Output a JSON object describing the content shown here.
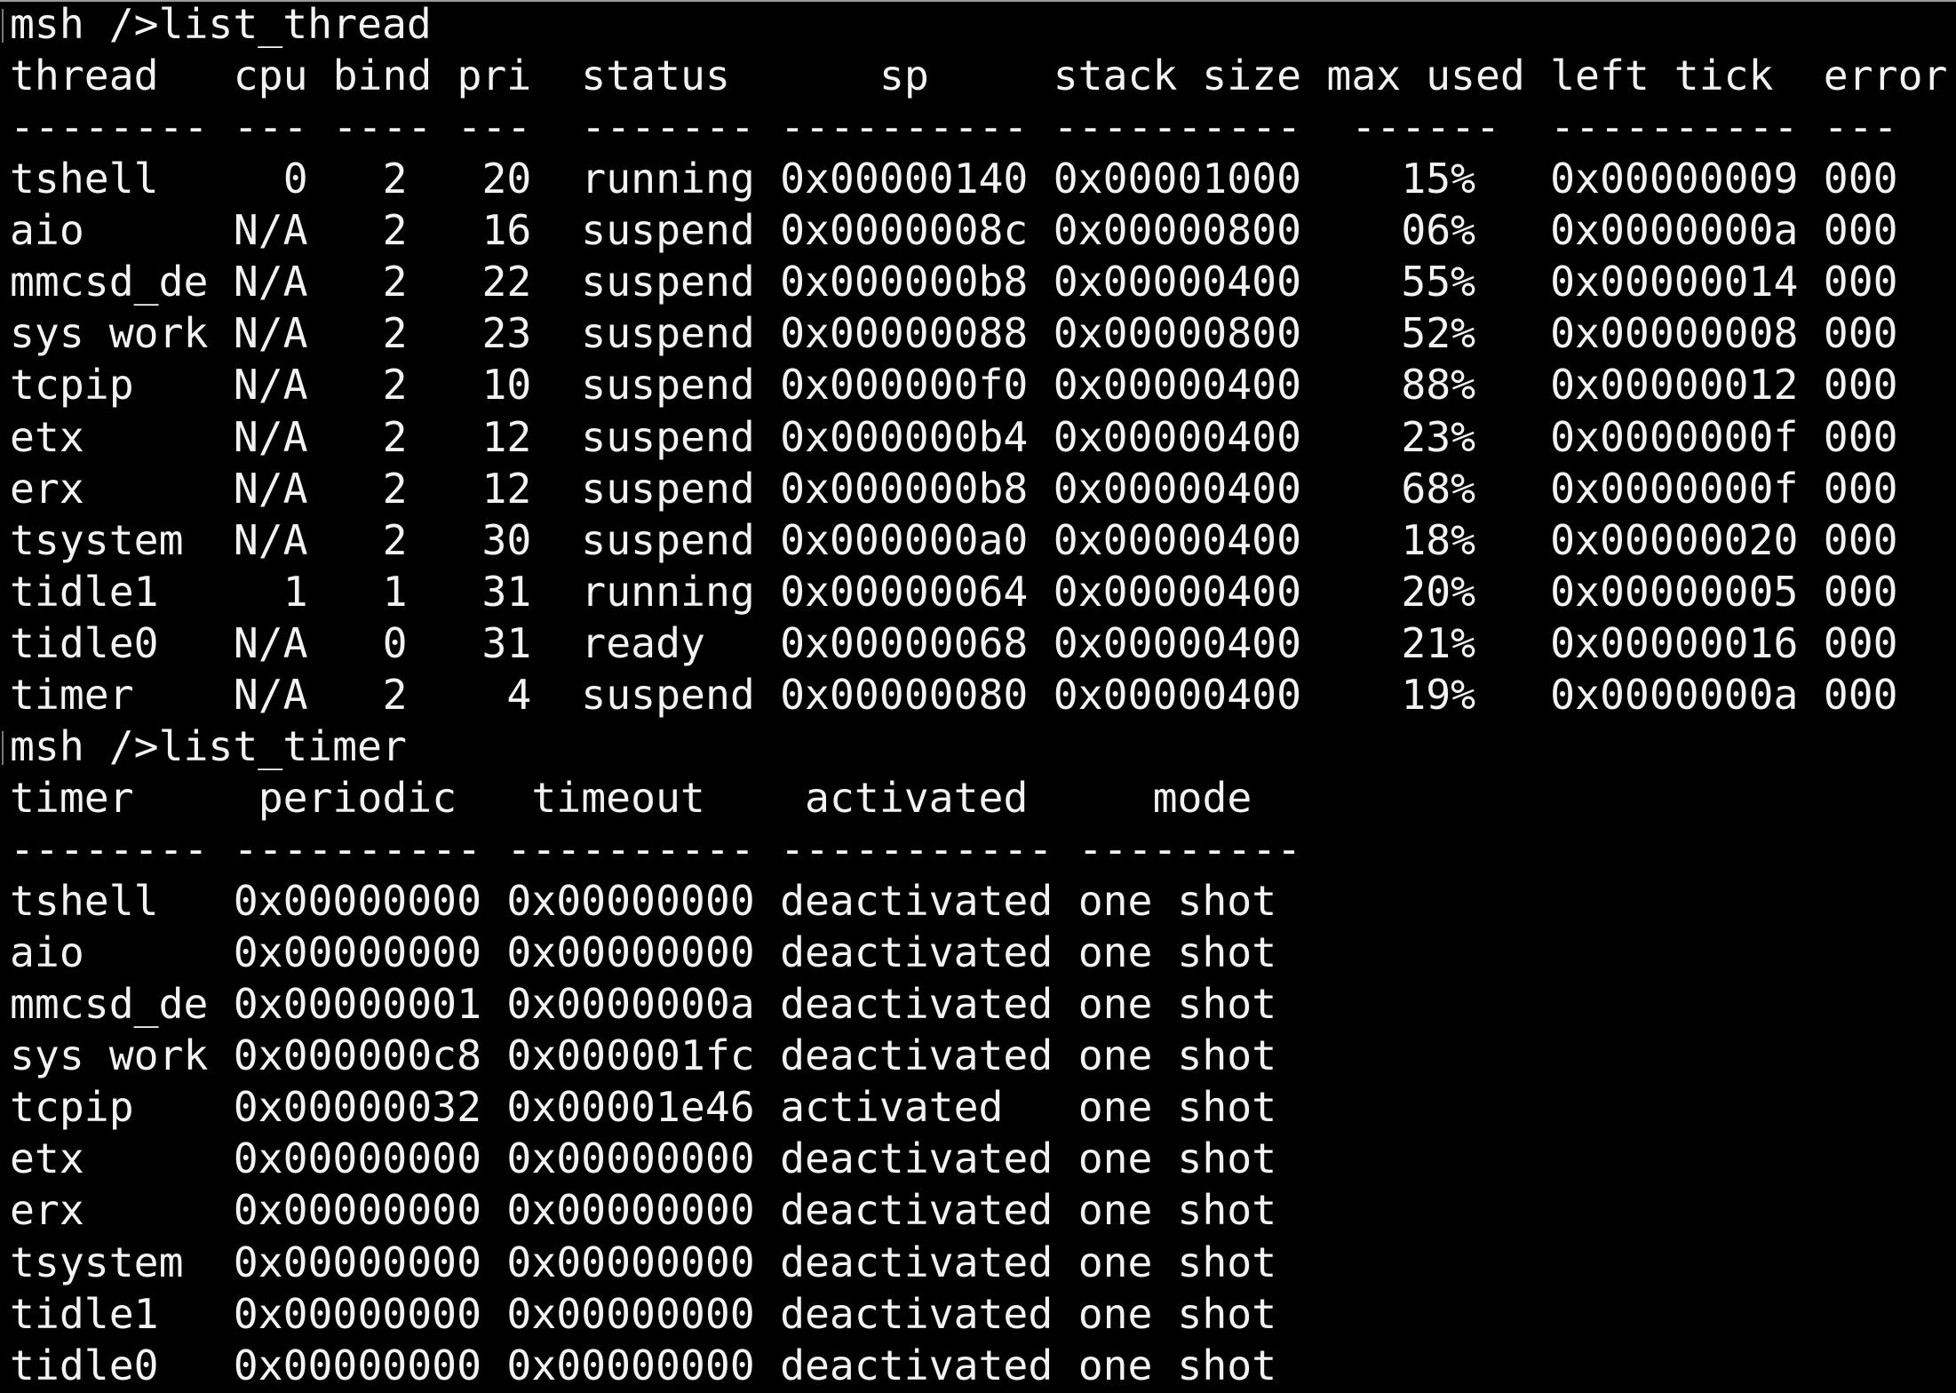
{
  "colors": {
    "background": "#000000",
    "text": "#f2f2f2"
  },
  "thread_command": "msh />list_thread",
  "thread_table": {
    "headers": [
      "thread",
      "cpu",
      "bind",
      "pri",
      "status",
      "sp",
      "stack size",
      "max used",
      "left tick",
      "error"
    ],
    "separators": [
      "--------",
      "---",
      "----",
      "---",
      "-------",
      "----------",
      "----------",
      "------",
      "----------",
      "---"
    ],
    "rows": [
      [
        "tshell",
        "0",
        "2",
        "20",
        "running",
        "0x00000140",
        "0x00001000",
        "15%",
        "0x00000009",
        "000"
      ],
      [
        "aio",
        "N/A",
        "2",
        "16",
        "suspend",
        "0x0000008c",
        "0x00000800",
        "06%",
        "0x0000000a",
        "000"
      ],
      [
        "mmcsd_de",
        "N/A",
        "2",
        "22",
        "suspend",
        "0x000000b8",
        "0x00000400",
        "55%",
        "0x00000014",
        "000"
      ],
      [
        "sys work",
        "N/A",
        "2",
        "23",
        "suspend",
        "0x00000088",
        "0x00000800",
        "52%",
        "0x00000008",
        "000"
      ],
      [
        "tcpip",
        "N/A",
        "2",
        "10",
        "suspend",
        "0x000000f0",
        "0x00000400",
        "88%",
        "0x00000012",
        "000"
      ],
      [
        "etx",
        "N/A",
        "2",
        "12",
        "suspend",
        "0x000000b4",
        "0x00000400",
        "23%",
        "0x0000000f",
        "000"
      ],
      [
        "erx",
        "N/A",
        "2",
        "12",
        "suspend",
        "0x000000b8",
        "0x00000400",
        "68%",
        "0x0000000f",
        "000"
      ],
      [
        "tsystem",
        "N/A",
        "2",
        "30",
        "suspend",
        "0x000000a0",
        "0x00000400",
        "18%",
        "0x00000020",
        "000"
      ],
      [
        "tidle1",
        "1",
        "1",
        "31",
        "running",
        "0x00000064",
        "0x00000400",
        "20%",
        "0x00000005",
        "000"
      ],
      [
        "tidle0",
        "N/A",
        "0",
        "31",
        "ready",
        "0x00000068",
        "0x00000400",
        "21%",
        "0x00000016",
        "000"
      ],
      [
        "timer",
        "N/A",
        "2",
        "4",
        "suspend",
        "0x00000080",
        "0x00000400",
        "19%",
        "0x0000000a",
        "000"
      ]
    ]
  },
  "timer_command": "msh />list_timer",
  "timer_table": {
    "headers": [
      "timer",
      "periodic",
      "timeout",
      "activated",
      "mode"
    ],
    "separators": [
      "--------",
      "----------",
      "----------",
      "-----------",
      "---------"
    ],
    "rows": [
      [
        "tshell",
        "0x00000000",
        "0x00000000",
        "deactivated",
        "one shot"
      ],
      [
        "aio",
        "0x00000000",
        "0x00000000",
        "deactivated",
        "one shot"
      ],
      [
        "mmcsd_de",
        "0x00000001",
        "0x0000000a",
        "deactivated",
        "one shot"
      ],
      [
        "sys work",
        "0x000000c8",
        "0x000001fc",
        "deactivated",
        "one shot"
      ],
      [
        "tcpip",
        "0x00000032",
        "0x00001e46",
        "activated",
        "one shot"
      ],
      [
        "etx",
        "0x00000000",
        "0x00000000",
        "deactivated",
        "one shot"
      ],
      [
        "erx",
        "0x00000000",
        "0x00000000",
        "deactivated",
        "one shot"
      ],
      [
        "tsystem",
        "0x00000000",
        "0x00000000",
        "deactivated",
        "one shot"
      ],
      [
        "tidle1",
        "0x00000000",
        "0x00000000",
        "deactivated",
        "one shot"
      ],
      [
        "tidle0",
        "0x00000000",
        "0x00000000",
        "deactivated",
        "one shot"
      ]
    ]
  }
}
